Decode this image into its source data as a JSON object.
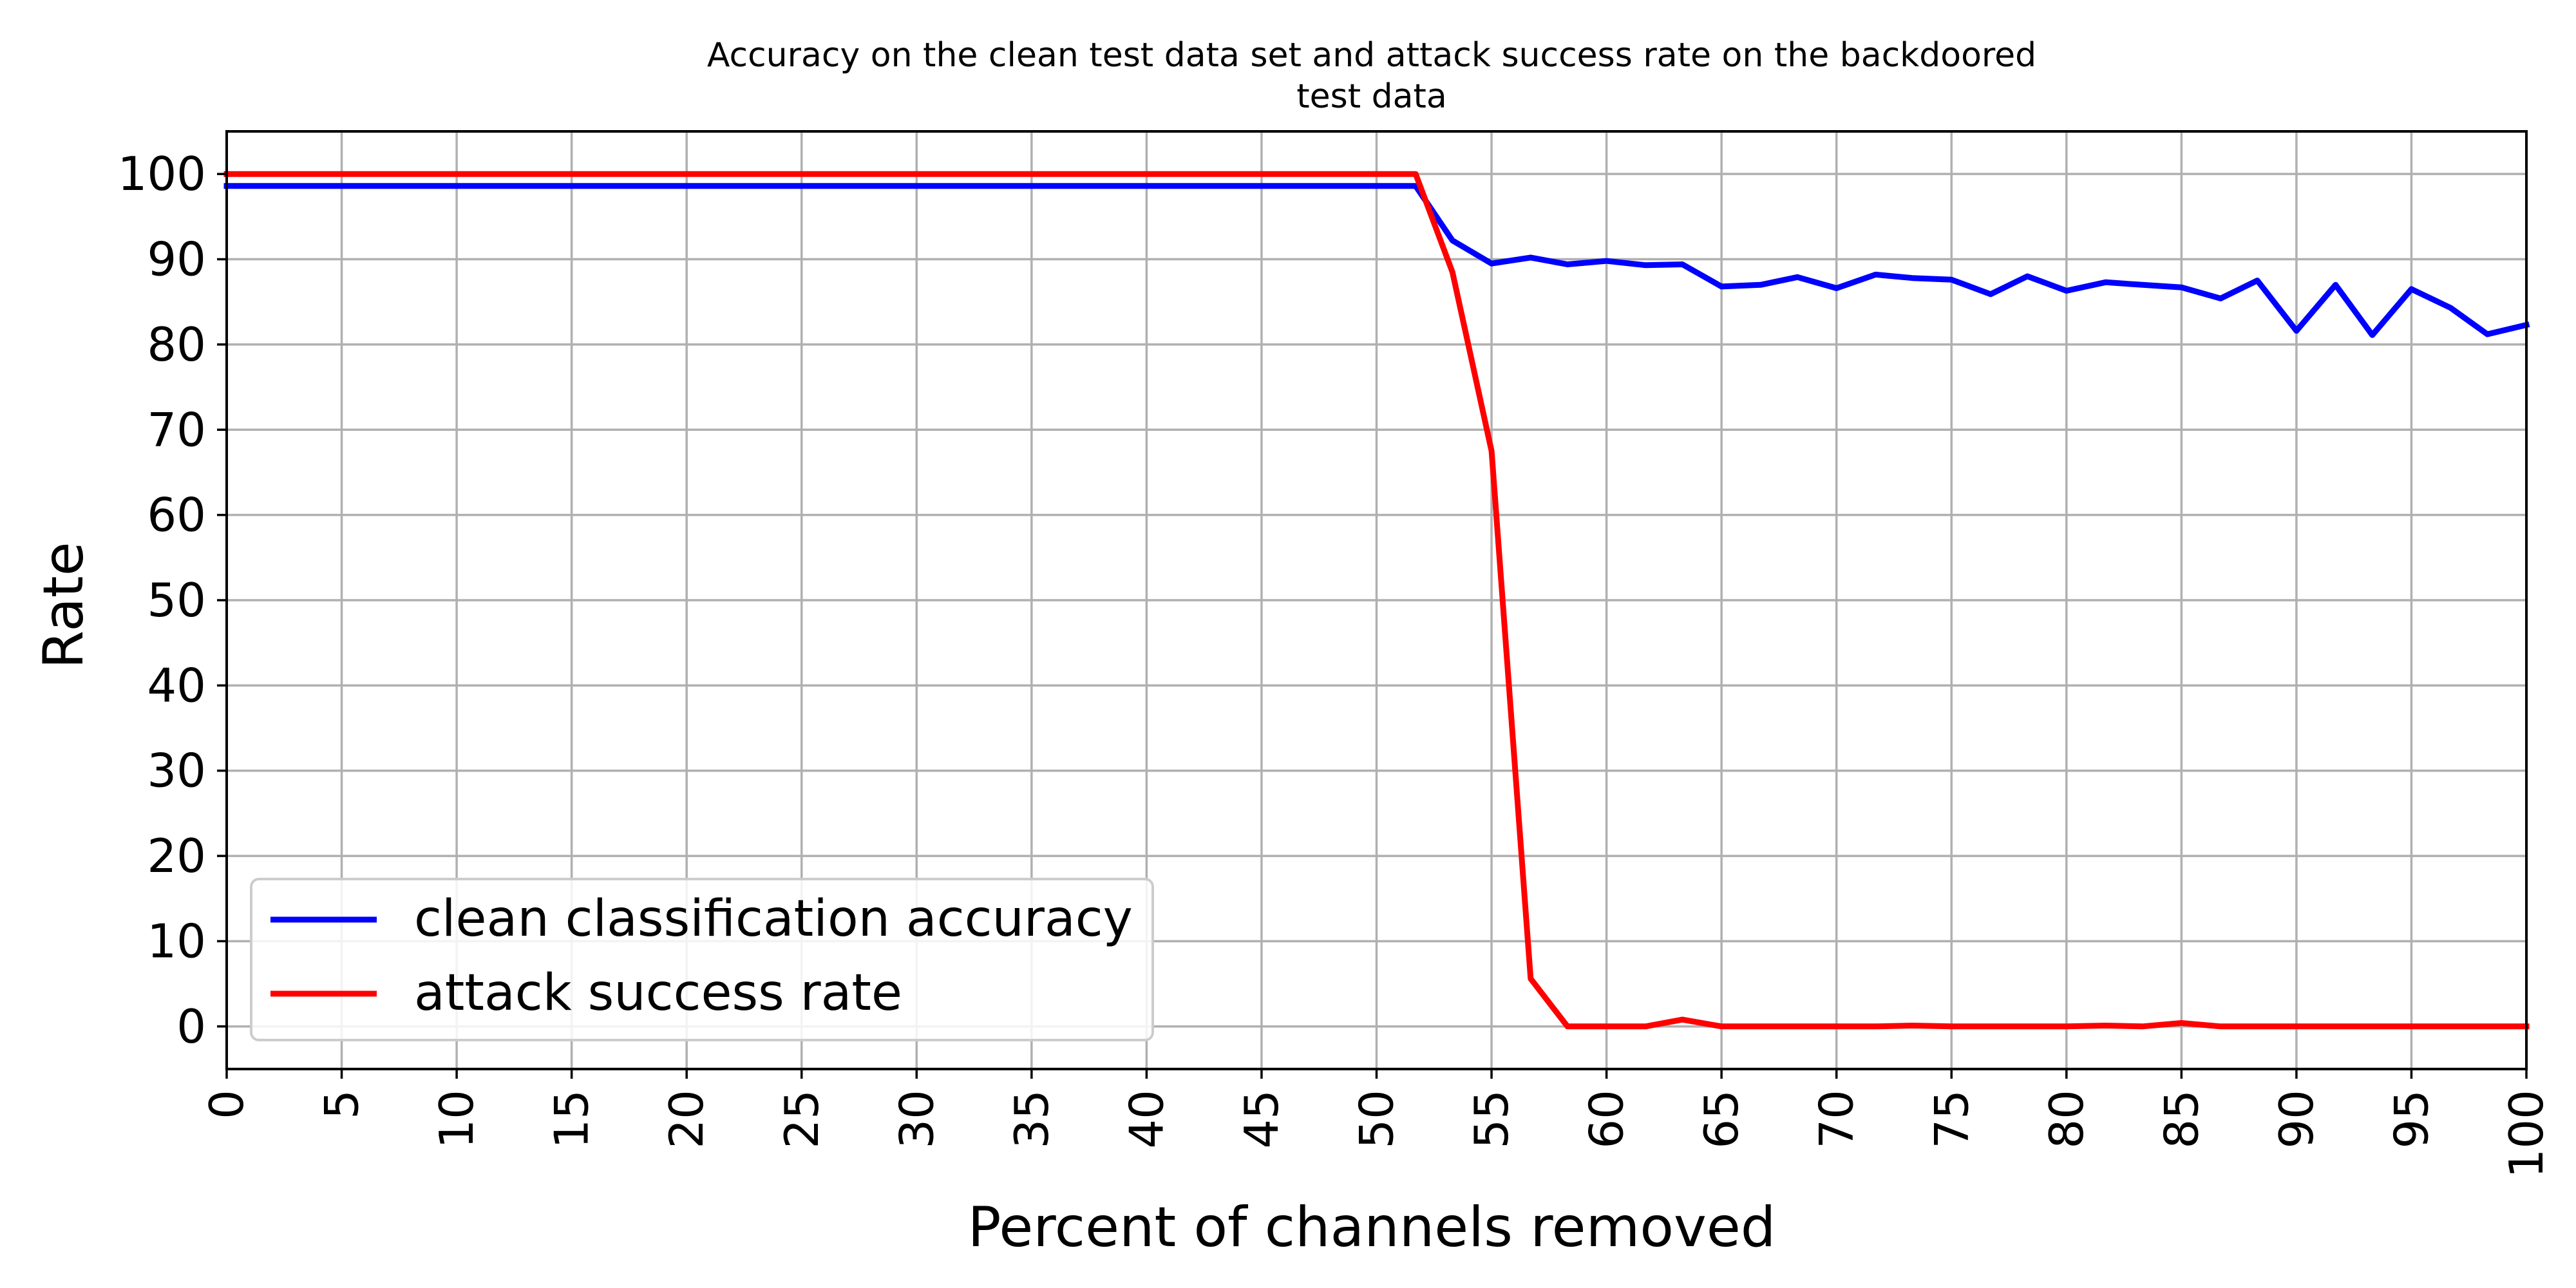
{
  "chart_data": {
    "type": "line",
    "title_line1": "Accuracy on the clean test data set and attack success rate on the backdoored",
    "title_line2": "test data",
    "xlabel": "Percent of channels removed",
    "ylabel": "Rate",
    "xlim": [
      0,
      100
    ],
    "ylim": [
      -5,
      105
    ],
    "xticks": [
      0,
      5,
      10,
      15,
      20,
      25,
      30,
      35,
      40,
      45,
      50,
      55,
      60,
      65,
      70,
      75,
      80,
      85,
      90,
      95,
      100
    ],
    "yticks": [
      0,
      10,
      20,
      30,
      40,
      50,
      60,
      70,
      80,
      90,
      100
    ],
    "grid": true,
    "legend_position": "lower-left",
    "series": [
      {
        "name": "clean classification accuracy",
        "color": "#0000ff",
        "x": [
          0,
          51.7,
          53.3,
          55.0,
          56.7,
          58.3,
          60.0,
          61.7,
          63.3,
          65.0,
          66.7,
          68.3,
          70.0,
          71.7,
          73.3,
          75.0,
          76.7,
          78.3,
          80.0,
          81.7,
          83.3,
          85.0,
          86.7,
          88.3,
          90.0,
          91.7,
          93.3,
          95.0,
          96.7,
          98.3,
          100
        ],
        "y": [
          98.6,
          98.6,
          92.2,
          89.5,
          90.2,
          89.4,
          89.8,
          89.3,
          89.4,
          86.8,
          87.0,
          87.9,
          86.6,
          88.2,
          87.8,
          87.6,
          85.9,
          88.0,
          86.3,
          87.3,
          87.0,
          86.7,
          85.4,
          87.5,
          81.6,
          87.0,
          81.1,
          86.5,
          84.3,
          81.2,
          82.3
        ]
      },
      {
        "name": "attack success rate",
        "color": "#ff0000",
        "x": [
          0,
          51.7,
          53.3,
          55.0,
          56.7,
          58.3,
          60.0,
          61.7,
          63.3,
          65.0,
          66.7,
          68.3,
          70.0,
          71.7,
          73.3,
          75.0,
          76.7,
          78.3,
          80.0,
          81.7,
          83.3,
          85.0,
          86.7,
          88.3,
          90.0,
          91.7,
          93.3,
          95.0,
          96.7,
          98.3,
          100
        ],
        "y": [
          100,
          100,
          88.5,
          67.5,
          5.6,
          0.0,
          0.0,
          0.0,
          0.8,
          0.0,
          0.0,
          0.0,
          0.0,
          0.0,
          0.1,
          0.0,
          0.0,
          0.0,
          0.0,
          0.1,
          0.0,
          0.4,
          0.0,
          0.0,
          0.0,
          0.0,
          0.0,
          0.0,
          0.0,
          0.0,
          0.0
        ]
      }
    ]
  }
}
